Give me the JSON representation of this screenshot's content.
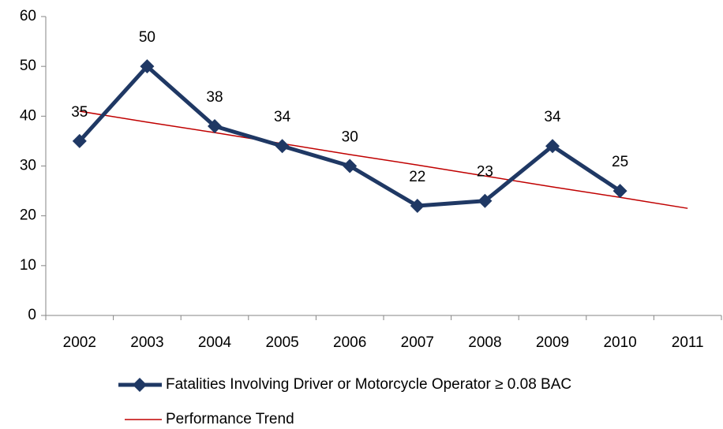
{
  "chart_data": {
    "type": "line",
    "categories": [
      "2002",
      "2003",
      "2004",
      "2005",
      "2006",
      "2007",
      "2008",
      "2009",
      "2010",
      "2011"
    ],
    "series": [
      {
        "name": "Fatalities Involving Driver or Motorcycle Operator ≥ 0.08 BAC",
        "color": "#1f3864",
        "marker": "diamond",
        "data_labels": true,
        "values": [
          35,
          50,
          38,
          34,
          30,
          22,
          23,
          34,
          25,
          null
        ]
      },
      {
        "name": "Performance Trend",
        "color": "#c00000",
        "marker": "none",
        "data_labels": false,
        "values": [
          41,
          38.8,
          36.7,
          34.5,
          32.3,
          30.2,
          28,
          25.8,
          23.7,
          21.5
        ]
      }
    ],
    "ylim": [
      0,
      60
    ],
    "yticks": [
      0,
      10,
      20,
      30,
      40,
      50,
      60
    ],
    "grid": false,
    "legend": "bottom"
  }
}
